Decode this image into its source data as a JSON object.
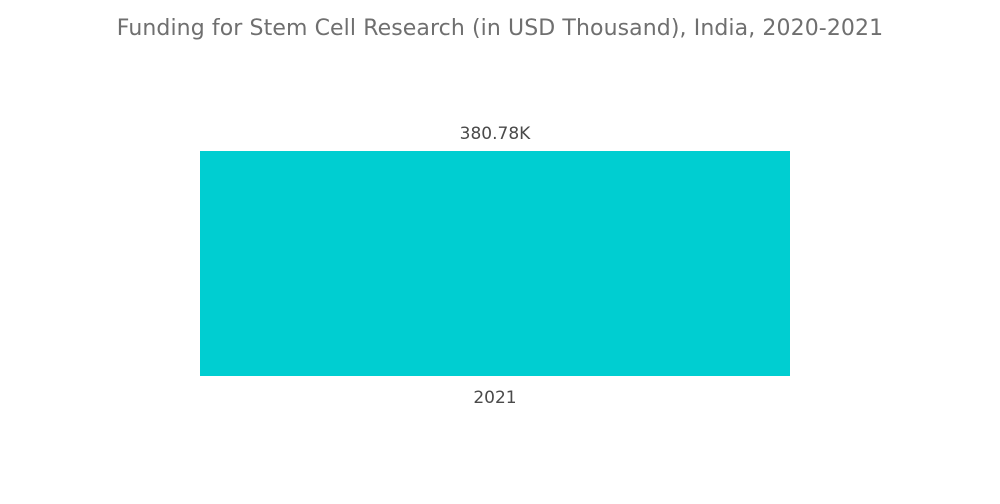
{
  "chart_data": {
    "type": "bar",
    "title": "Funding for Stem Cell Research (in USD Thousand), India, 2020-2021",
    "categories": [
      "2021"
    ],
    "values": [
      380.78
    ],
    "data_labels": [
      "380.78K"
    ],
    "xlabel": "",
    "ylabel": "",
    "ylim": [
      0,
      380.78
    ],
    "grid": false,
    "legend": "none",
    "bar_color": "#00ced1"
  }
}
